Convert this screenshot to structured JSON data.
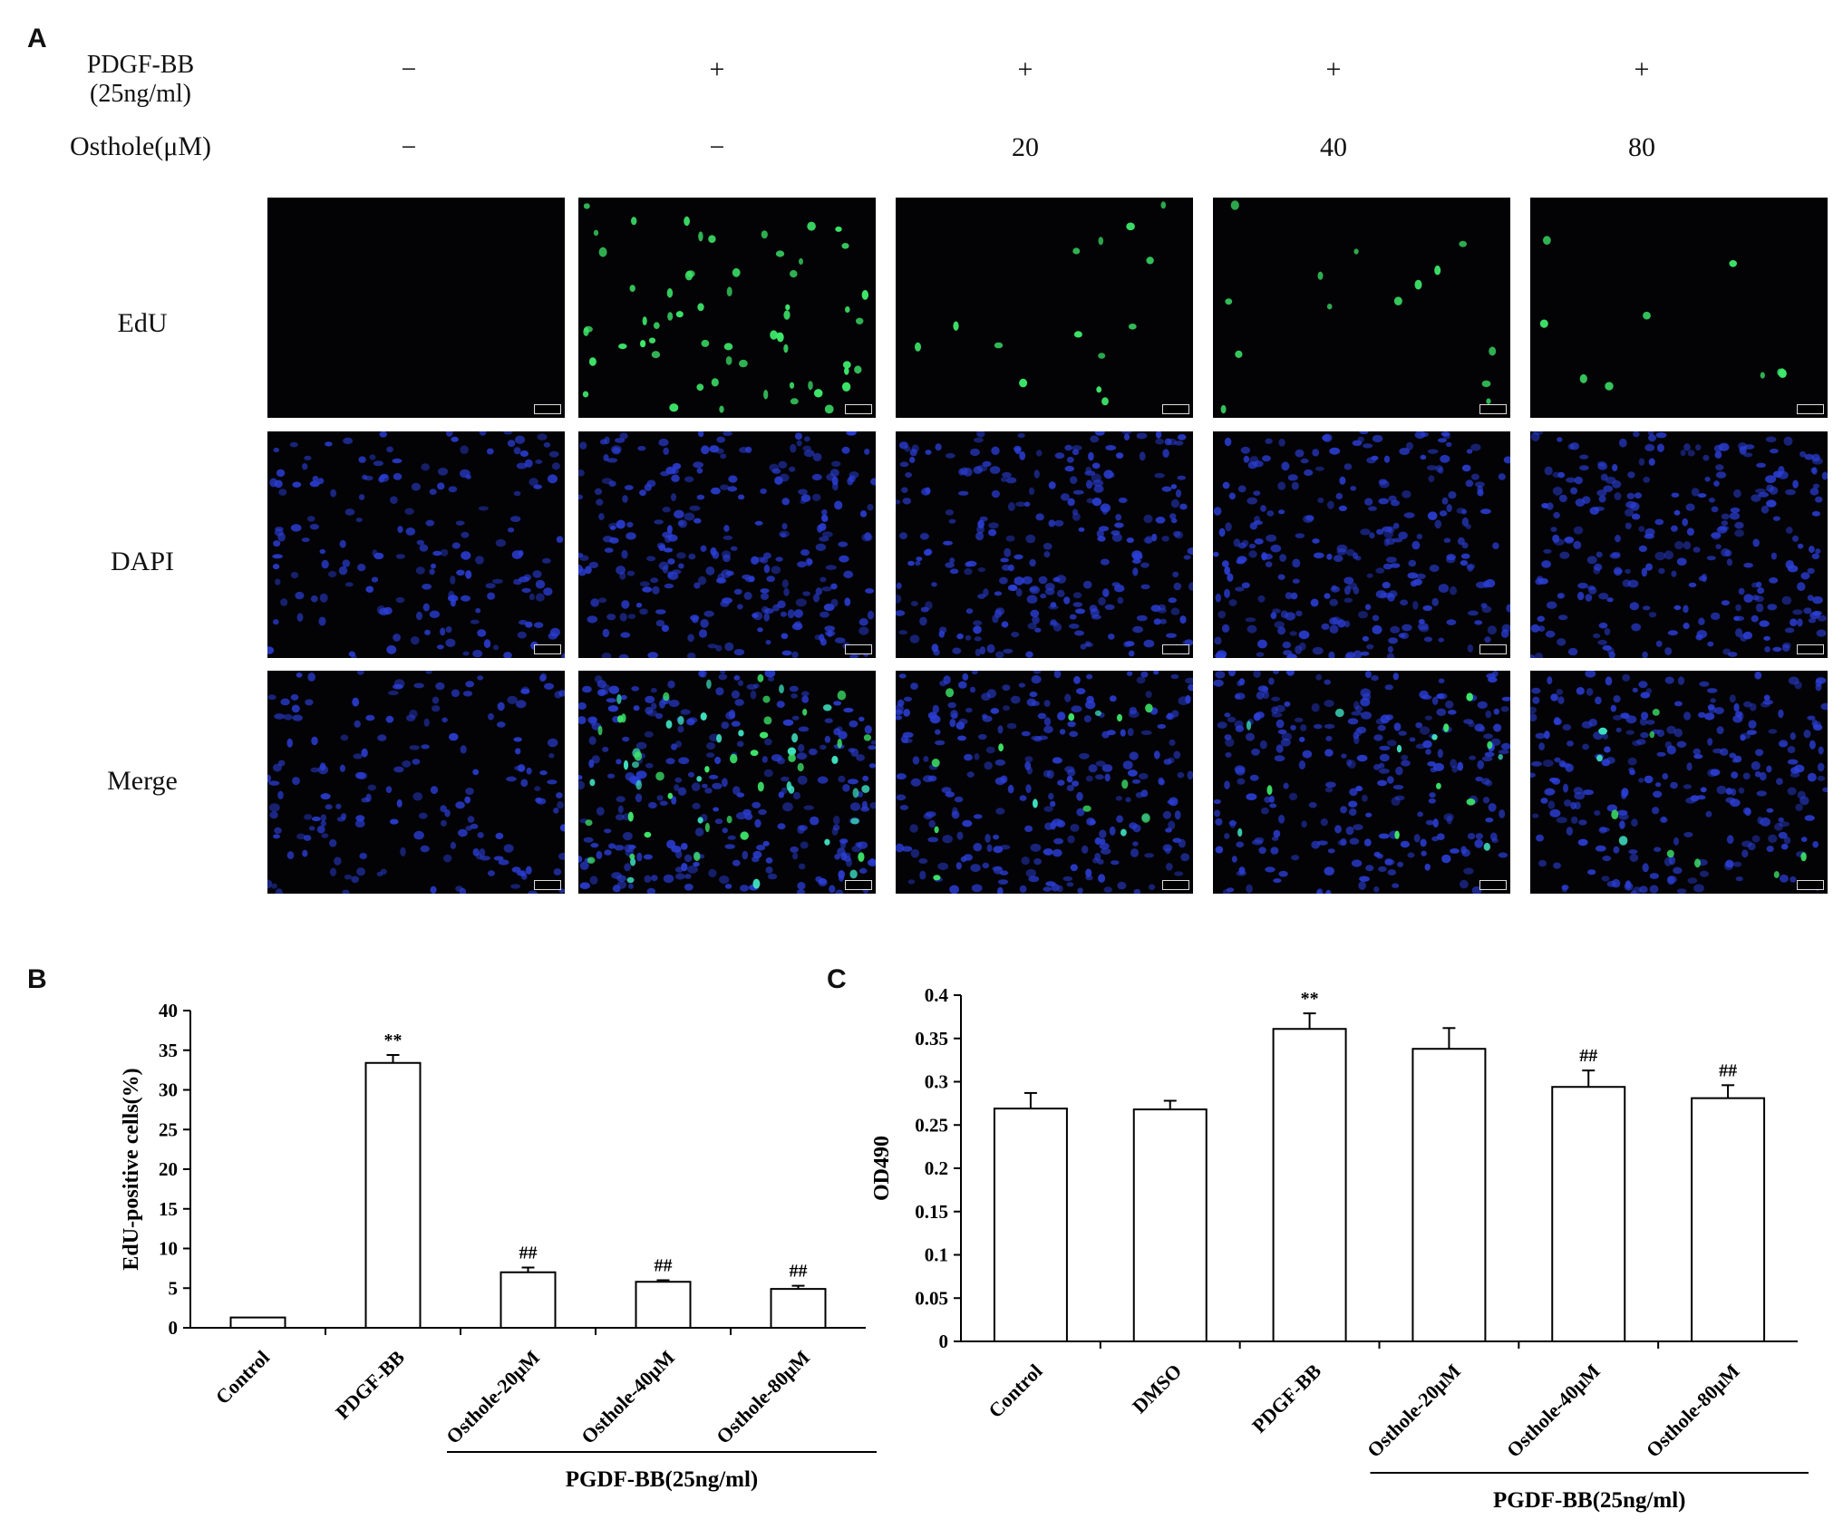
{
  "panels": {
    "a": "A",
    "b": "B",
    "c": "C"
  },
  "panel_a": {
    "pdgf_label_line1": "PDGF-BB",
    "pdgf_label_line2": "(25ng/ml)",
    "osthole_label": "Osthole(μM)",
    "pdgf_values": [
      "−",
      "+",
      "+",
      "+",
      "+"
    ],
    "osthole_values": [
      "−",
      "−",
      "20",
      "40",
      "80"
    ],
    "row_labels": [
      "EdU",
      "DAPI",
      "Merge"
    ],
    "edu_density": [
      0,
      60,
      14,
      14,
      10
    ],
    "colors": {
      "edu": "#3ee86a",
      "dapi": "#2c3fd8",
      "background": "#030306"
    }
  },
  "chart_data": [
    {
      "type": "bar",
      "panel": "B",
      "categories": [
        "Control",
        "PDGF-BB",
        "Osthole-20μM",
        "Osthole-40μM",
        "Osthole-80μM"
      ],
      "values": [
        1.3,
        33.4,
        7.0,
        5.8,
        4.9
      ],
      "errors": [
        0.0,
        1.0,
        0.6,
        0.2,
        0.4
      ],
      "annotations": [
        "",
        "**",
        "##",
        "##",
        "##"
      ],
      "ylabel": "EdU-positive cells(%)",
      "ylim": [
        0,
        40
      ],
      "yticks": [
        "0",
        "5",
        "10",
        "15",
        "20",
        "25",
        "30",
        "35",
        "40"
      ],
      "group_label": "PGDF-BB(25ng/ml)",
      "group_start_index": 2
    },
    {
      "type": "bar",
      "panel": "C",
      "categories": [
        "Control",
        "DMSO",
        "PDGF-BB",
        "Osthole-20μM",
        "Osthole-40μM",
        "Osthole-80μM"
      ],
      "values": [
        0.269,
        0.268,
        0.361,
        0.338,
        0.294,
        0.281
      ],
      "errors": [
        0.018,
        0.01,
        0.018,
        0.024,
        0.019,
        0.015
      ],
      "annotations": [
        "",
        "",
        "**",
        "",
        "##",
        "##"
      ],
      "ylabel": "OD490",
      "ylim": [
        0,
        0.4
      ],
      "yticks": [
        "0",
        "0.05",
        "0.1",
        "0.15",
        "0.2",
        "0.25",
        "0.3",
        "0.35",
        "0.4"
      ],
      "group_label": "PGDF-BB(25ng/ml)",
      "group_start_index": 3
    }
  ]
}
